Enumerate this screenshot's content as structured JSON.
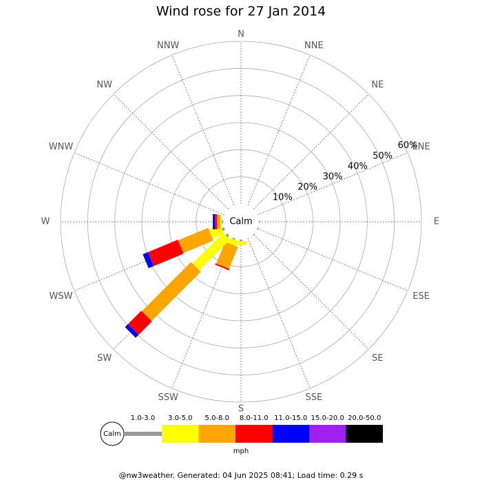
{
  "chart_data": {
    "type": "windrose",
    "title": "Wind rose for 27 Jan 2014",
    "categories": [
      "N",
      "NNE",
      "NE",
      "ENE",
      "E",
      "ESE",
      "SE",
      "SSE",
      "S",
      "SSW",
      "SW",
      "WSW",
      "W",
      "WNW",
      "NW",
      "NNW"
    ],
    "calm_label": "Calm",
    "unit": "mph",
    "footer": "@nw3weather. Generated: 04 Jun 2025 08:41; Load time: 0.29 s",
    "ylim": [
      0,
      60
    ],
    "yticks": [
      {
        "value": 10,
        "label": "10%"
      },
      {
        "value": 20,
        "label": "20%"
      },
      {
        "value": 30,
        "label": "30%"
      },
      {
        "value": 40,
        "label": "40%"
      },
      {
        "value": 50,
        "label": "50%"
      },
      {
        "value": 60,
        "label": "60%"
      }
    ],
    "series": [
      {
        "name": "1.0-3.0",
        "color": "#999999",
        "values": [
          0,
          0,
          0,
          0,
          0.3,
          0.3,
          0.3,
          0,
          0.5,
          0.5,
          1,
          1,
          0.5,
          0,
          0,
          0
        ]
      },
      {
        "name": "3.0-5.0",
        "color": "#ffff00",
        "values": [
          0,
          0,
          0,
          0,
          0,
          0,
          0,
          0,
          1.5,
          2,
          16,
          4.5,
          0.5,
          0,
          0,
          0
        ]
      },
      {
        "name": "5.0-8.0",
        "color": "#ffa500",
        "values": [
          0,
          0,
          0,
          0,
          0,
          0,
          0,
          0,
          0,
          8.7,
          25.7,
          12,
          1.3,
          0,
          0,
          0
        ]
      },
      {
        "name": "8.0-11.0",
        "color": "#ff0000",
        "values": [
          0,
          0,
          0,
          0,
          0,
          0,
          0,
          0,
          0,
          0.5,
          7,
          12,
          0.7,
          0,
          0,
          0
        ]
      },
      {
        "name": "11.0-15.0",
        "color": "#0000ff",
        "values": [
          0,
          0,
          0,
          0,
          0,
          0,
          0,
          0,
          0,
          0,
          1.5,
          2,
          0.8,
          0,
          0,
          0
        ]
      },
      {
        "name": "15.0-20.0",
        "color": "#a020f0",
        "values": [
          0,
          0,
          0,
          0,
          0,
          0,
          0,
          0,
          0,
          0,
          0,
          0,
          0,
          0,
          0,
          0
        ]
      },
      {
        "name": "20.0-50.0",
        "color": "#000000",
        "values": [
          0,
          0,
          0,
          0,
          0,
          0,
          0,
          0,
          0,
          0,
          0,
          0,
          0,
          0,
          0,
          0
        ]
      }
    ]
  }
}
